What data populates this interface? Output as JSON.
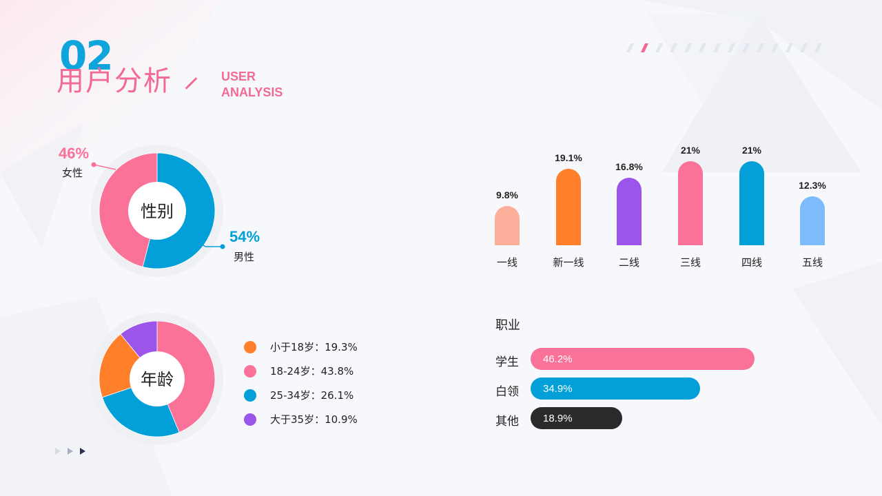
{
  "header": {
    "section_number": "02",
    "title": "用户分析",
    "subtitle_line1": "USER",
    "subtitle_line2": "ANALYSIS"
  },
  "colors": {
    "pink": "#fb7299",
    "blue": "#029fd8",
    "orange": "#ff7f2a",
    "purple": "#9b55ea",
    "salmon": "#fbae9a",
    "lightblue": "#7dbcfb",
    "dark": "#2a2a2a"
  },
  "chart_data": [
    {
      "type": "pie",
      "title": "性别",
      "labels": [
        "女性",
        "男性"
      ],
      "values": [
        46,
        54
      ],
      "value_labels": [
        "46%",
        "54%"
      ],
      "colors": [
        "#fb7299",
        "#029fd8"
      ]
    },
    {
      "type": "pie",
      "title": "年龄",
      "labels": [
        "小于18岁",
        "18-24岁",
        "25-34岁",
        "大于35岁"
      ],
      "values": [
        19.3,
        43.8,
        26.1,
        10.9
      ],
      "legend": [
        "小于18岁：19.3%",
        "18-24岁：43.8%",
        "25-34岁：26.1%",
        "大于35岁：10.9%"
      ],
      "colors": [
        "#ff7f2a",
        "#fb7299",
        "#029fd8",
        "#9b55ea"
      ]
    },
    {
      "type": "bar",
      "title": "",
      "categories": [
        "一线",
        "新一线",
        "二线",
        "三线",
        "四线",
        "五线"
      ],
      "values": [
        9.8,
        19.1,
        16.8,
        21,
        21,
        12.3
      ],
      "value_labels": [
        "9.8%",
        "19.1%",
        "16.8%",
        "21%",
        "21%",
        "12.3%"
      ],
      "colors": [
        "#fbae9a",
        "#ff7f2a",
        "#9b55ea",
        "#fb7299",
        "#029fd8",
        "#7dbcfb"
      ],
      "ylim": [
        0,
        21
      ]
    },
    {
      "type": "bar",
      "orientation": "horizontal",
      "title": "职业",
      "categories": [
        "学生",
        "白领",
        "其他"
      ],
      "values": [
        46.2,
        34.9,
        18.9
      ],
      "value_labels": [
        "46.2%",
        "34.9%",
        "18.9%"
      ],
      "colors": [
        "#fb7299",
        "#029fd8",
        "#2a2a2a"
      ],
      "xlim": [
        0,
        46.2
      ]
    }
  ]
}
